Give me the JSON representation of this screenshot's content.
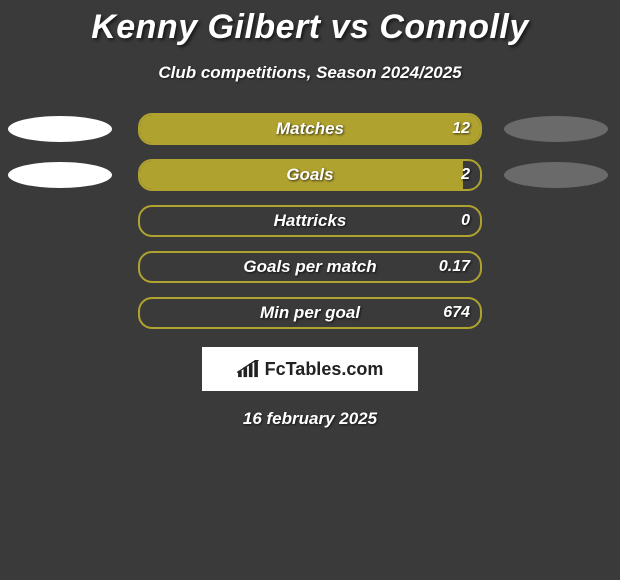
{
  "colors": {
    "background": "#3a3a3a",
    "bar_fill": "#b0a22f",
    "bar_border": "#b0a22f",
    "ellipse_left": "#ffffff",
    "ellipse_right": "#6a6a6a",
    "logo_bg": "#ffffff",
    "logo_text": "#222222",
    "text": "#ffffff"
  },
  "title": "Kenny Gilbert vs Connolly",
  "subtitle": "Club competitions, Season 2024/2025",
  "bar_track_width": 344,
  "stats": [
    {
      "label": "Matches",
      "value": "12",
      "fill_pct": 100,
      "show_ellipses": true
    },
    {
      "label": "Goals",
      "value": "2",
      "fill_pct": 95,
      "show_ellipses": true
    },
    {
      "label": "Hattricks",
      "value": "0",
      "fill_pct": 0,
      "show_ellipses": false
    },
    {
      "label": "Goals per match",
      "value": "0.17",
      "fill_pct": 0,
      "show_ellipses": false
    },
    {
      "label": "Min per goal",
      "value": "674",
      "fill_pct": 0,
      "show_ellipses": false
    }
  ],
  "logo": {
    "text": "FcTables.com"
  },
  "date": "16 february 2025"
}
